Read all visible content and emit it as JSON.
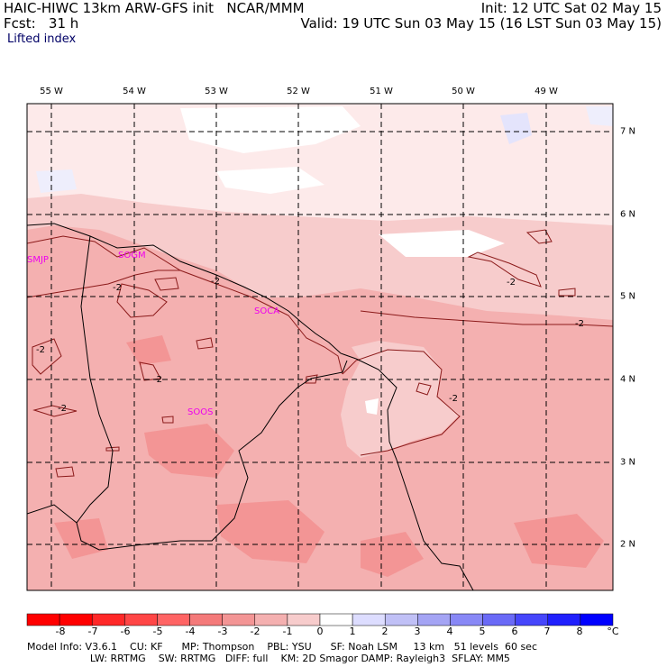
{
  "header": {
    "line1_left": "HAIC-HIWC 13km ARW-GFS init   NCAR/MMM",
    "line1_right": "Init: 12 UTC Sat 02 May 15",
    "line2_left": "Fcst:   31 h",
    "line2_right": "Valid: 19 UTC Sun 03 May 15 (16 LST Sun 03 May 15)",
    "field": "Lifted index"
  },
  "axes": {
    "lon_labels": [
      "55 W",
      "54 W",
      "53 W",
      "52 W",
      "51 W",
      "50 W",
      "49 W"
    ],
    "lat_labels": [
      "7 N",
      "6 N",
      "5 N",
      "4 N",
      "3 N",
      "2 N"
    ]
  },
  "stations": [
    "SMJP",
    "SOGM",
    "SOCA",
    "SOOS"
  ],
  "contour_label": "-2",
  "colorbar": {
    "labels": [
      "-8",
      "-7",
      "-6",
      "-5",
      "-4",
      "-3",
      "-2",
      "-1",
      "0",
      "1",
      "2",
      "3",
      "4",
      "5",
      "6",
      "7",
      "8"
    ],
    "unit": "°C",
    "colors": [
      "#ff0000",
      "#ff2828",
      "#ff4646",
      "#ff6464",
      "#f47a7a",
      "#f39595",
      "#f4b0b0",
      "#f7cccc",
      "#ffffff",
      "#ddddff",
      "#c0c0f6",
      "#a4a4f4",
      "#8888f6",
      "#6a6af7",
      "#4646fb",
      "#2020fd",
      "#0000ff"
    ]
  },
  "footer": {
    "line1": "Model Info: V3.6.1    CU: KF      MP: Thompson    PBL: YSU      SF: Noah LSM     13 km   51 levels  60 sec",
    "line2": "                    LW: RRTMG    SW: RRTMG   DIFF: full    KM: 2D Smagor DAMP: Rayleigh3  SFLAY: MM5"
  }
}
